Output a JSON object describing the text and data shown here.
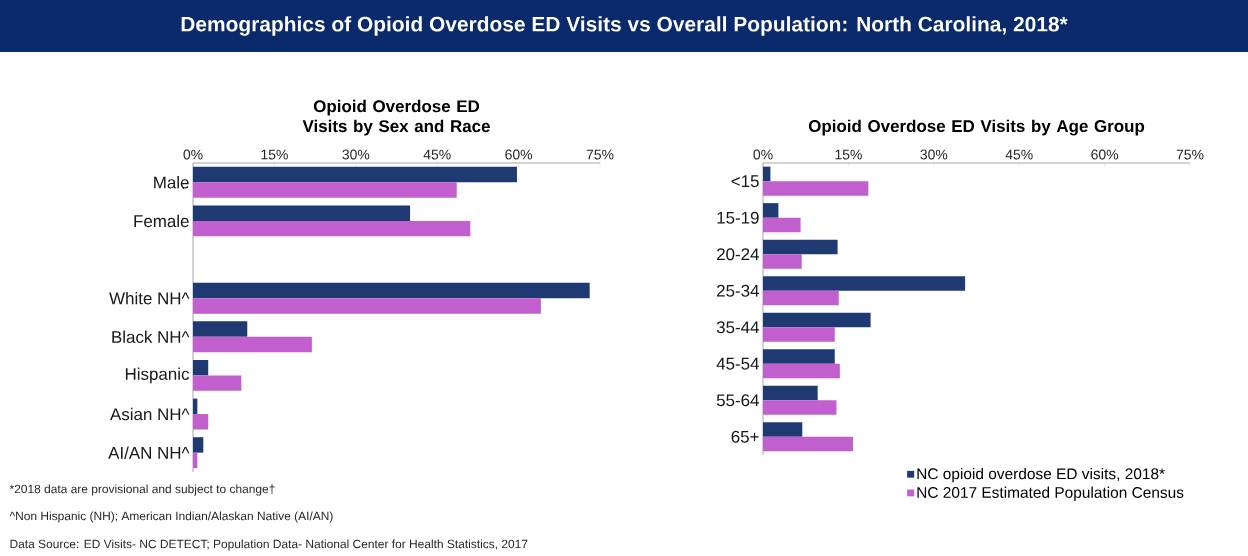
{
  "chart_data": [
    {
      "type": "bar",
      "orientation": "horizontal",
      "title": "Opioid Overdose ED Visits by Sex and Race",
      "categories": [
        "Male",
        "Female",
        null,
        "White NH^",
        "Black NH^",
        "Hispanic",
        "Asian NH^",
        "AI/AN NH^"
      ],
      "series": [
        {
          "color": "#1f3a73",
          "values": [
            59.7,
            40.0,
            null,
            73.1,
            10.0,
            2.8,
            0.8,
            1.9
          ]
        },
        {
          "color": "#c25fcf",
          "values": [
            48.6,
            51.1,
            null,
            64.1,
            21.9,
            8.9,
            2.8,
            0.8
          ]
        }
      ],
      "xlim": [
        0,
        75
      ],
      "xticks": [
        {
          "value": 0,
          "label": "0%"
        },
        {
          "value": 15,
          "label": "15%"
        },
        {
          "value": 30,
          "label": "30%"
        },
        {
          "value": 45,
          "label": "45%"
        },
        {
          "value": 60,
          "label": "60%"
        },
        {
          "value": 75,
          "label": "75%"
        }
      ],
      "legend": false,
      "annotations": [
        "Demographics of Opioid Overdose ED Visits vs Overall Population: North Carolina, 2018*",
        "*2018 data are provisional and subject to change†",
        "^Non Hispanic (NH); American Indian/Alaskan Native (AI/AN)",
        "Data Source: ED Visits- NC DETECT; Population Data- National Center for Health Statistics, 2017"
      ]
    },
    {
      "type": "bar",
      "orientation": "horizontal",
      "title": "Opioid Overdose ED Visits by Age Group",
      "categories": [
        "<15",
        "15-19",
        "20-24",
        "25-34",
        "35-44",
        "45-54",
        "55-64",
        "65+"
      ],
      "series": [
        {
          "name": "NC opioid overdose ED visits, 2018*",
          "color": "#1f3a73",
          "values": [
            1.3,
            2.7,
            13.1,
            35.5,
            18.9,
            12.6,
            9.6,
            6.9
          ]
        },
        {
          "name": "NC 2017 Estimated Population Census",
          "color": "#c25fcf",
          "values": [
            18.5,
            6.6,
            6.8,
            13.3,
            12.6,
            13.5,
            12.9,
            15.8
          ]
        }
      ],
      "xlim": [
        0,
        75
      ],
      "xticks": [
        {
          "value": 0,
          "label": "0%"
        },
        {
          "value": 15,
          "label": "15%"
        },
        {
          "value": 30,
          "label": "30%"
        },
        {
          "value": 45,
          "label": "45%"
        },
        {
          "value": 60,
          "label": "60%"
        },
        {
          "value": 75,
          "label": "75%"
        }
      ],
      "legend": "bottom"
    }
  ]
}
